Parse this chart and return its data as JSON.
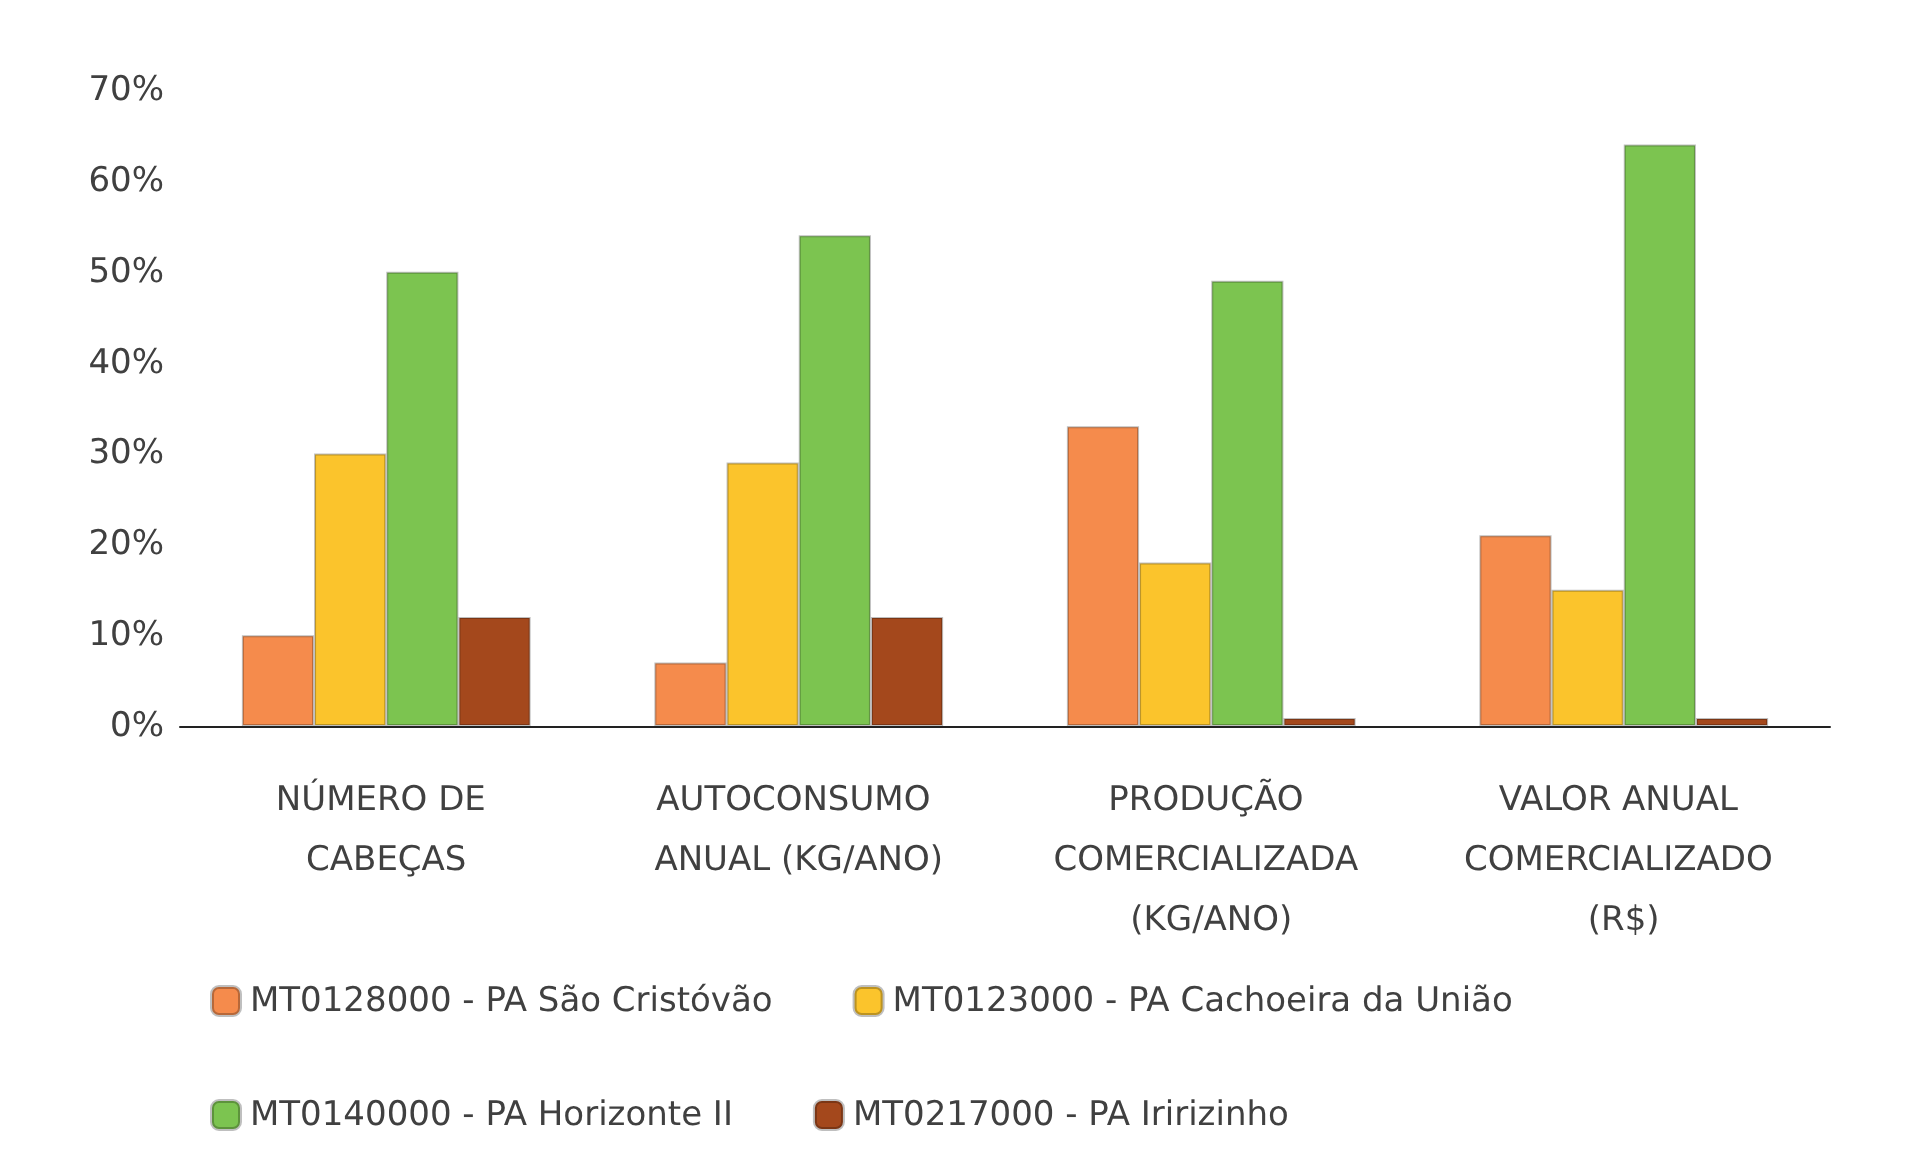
{
  "chart_data": {
    "type": "bar",
    "categories": [
      "NÚMERO DE CABEÇAS",
      "AUTOCONSUMO ANUAL (KG/ANO)",
      "PRODUÇÃO COMERCIALIZADA (KG/ANO)",
      "VALOR ANUAL COMERCIALIZADO (R$)"
    ],
    "series": [
      {
        "name": "MT0128000 - PA São Cristóvão",
        "color": "#f58b4c",
        "values": [
          10,
          7,
          33,
          21
        ]
      },
      {
        "name": "MT0123000 - PA Cachoeira da União",
        "color": "#fbc42c",
        "values": [
          30,
          29,
          18,
          15
        ]
      },
      {
        "name": "MT0140000 - PA Horizonte II",
        "color": "#7cc450",
        "values": [
          50,
          54,
          49,
          64
        ]
      },
      {
        "name": "MT0217000 - PA Iririzinho",
        "color": "#a4481c",
        "values": [
          12,
          12,
          0,
          0
        ]
      }
    ],
    "ylim": [
      0,
      70
    ],
    "yticks": [
      {
        "value": 0,
        "label": "0%"
      },
      {
        "value": 10,
        "label": "10%"
      },
      {
        "value": 20,
        "label": "20%"
      },
      {
        "value": 30,
        "label": "30%"
      },
      {
        "value": 40,
        "label": "40%"
      },
      {
        "value": 50,
        "label": "50%"
      },
      {
        "value": 60,
        "label": "60%"
      },
      {
        "value": 70,
        "label": "70%"
      }
    ],
    "grid": false,
    "legend": "bottom"
  }
}
